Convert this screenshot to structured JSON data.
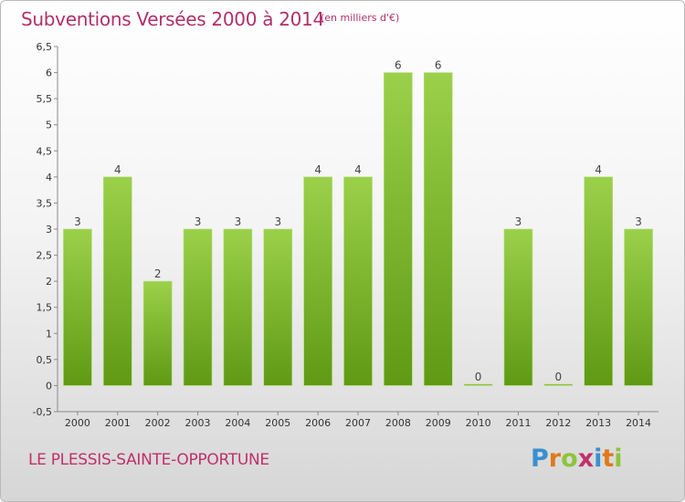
{
  "header": {
    "title": "Subventions Versées 2000 à 2014",
    "unit": "(en milliers d'€)"
  },
  "footer": {
    "commune": "LE PLESSIS-SAINTE-OPPORTUNE",
    "logo_text": "Proxiti"
  },
  "colors": {
    "title": "#b0306a",
    "bar_light": "#9bd04a",
    "bar_dark": "#5f9a14",
    "logo_letters": [
      "#3a8fd1",
      "#e0791a",
      "#8fc43a",
      "#c0306a",
      "#3a8fd1",
      "#e0791a",
      "#8fc43a"
    ]
  },
  "chart_data": {
    "type": "bar",
    "title": "Subventions Versées 2000 à 2014",
    "categories": [
      "2000",
      "2001",
      "2002",
      "2003",
      "2004",
      "2005",
      "2006",
      "2007",
      "2008",
      "2009",
      "2010",
      "2011",
      "2012",
      "2013",
      "2014"
    ],
    "values": [
      3,
      4,
      2,
      3,
      3,
      3,
      4,
      4,
      6,
      6,
      0,
      3,
      0,
      4,
      3
    ],
    "data_labels": [
      "3",
      "4",
      "2",
      "3",
      "3",
      "3",
      "4",
      "4",
      "6",
      "6",
      "0",
      "3",
      "0",
      "4",
      "3"
    ],
    "ylim": [
      -0.5,
      6.5
    ],
    "yticks": [
      -0.5,
      0,
      0.5,
      1,
      1.5,
      2,
      2.5,
      3,
      3.5,
      4,
      4.5,
      5,
      5.5,
      6,
      6.5
    ],
    "ytick_labels": [
      "-0,5",
      "0",
      "0,5",
      "1",
      "1,5",
      "2",
      "2,5",
      "3",
      "3,5",
      "4",
      "4,5",
      "5",
      "5,5",
      "6",
      "6,5"
    ],
    "grid": false,
    "legend": "none"
  }
}
